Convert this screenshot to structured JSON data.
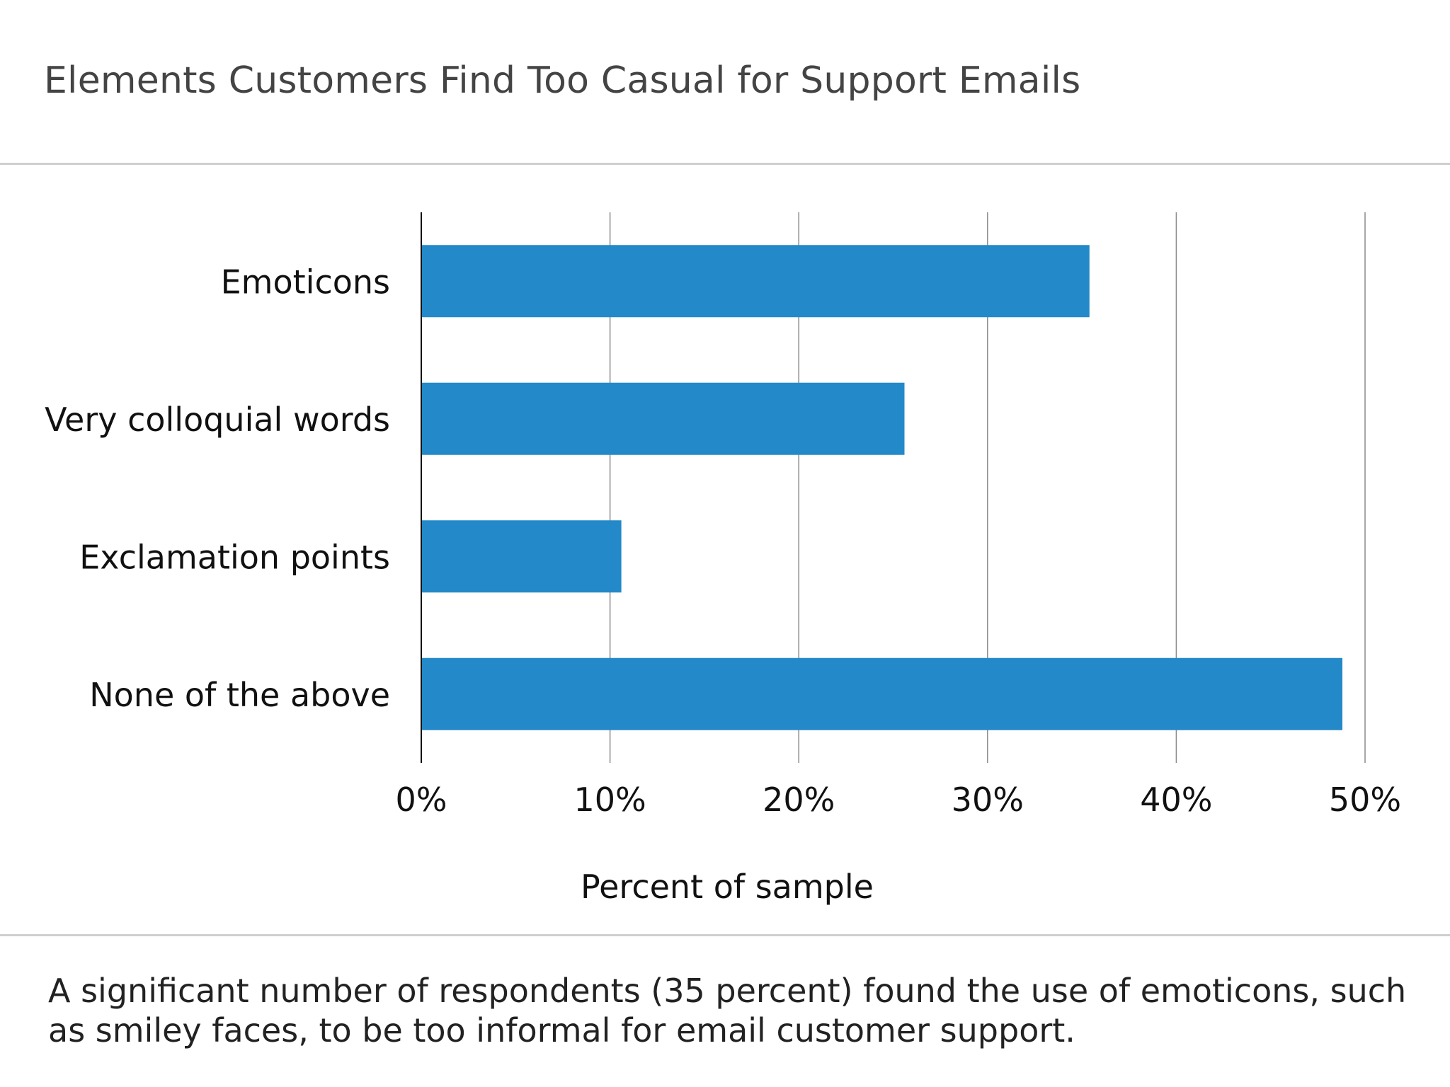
{
  "title": "Elements Customers Find Too Casual for Support Emails",
  "caption": "A significant number of respondents (35 percent) found the use of emoticons, such as smiley faces, to be too informal for email customer support.",
  "colors": {
    "bar": "#2389c8",
    "grid": "#8c8c8c",
    "axis": "#111111"
  },
  "chart_data": {
    "type": "bar",
    "orientation": "horizontal",
    "categories": [
      "Emoticons",
      "Very colloquial words",
      "Exclamation points",
      "None of the above"
    ],
    "values": [
      35.4,
      25.6,
      10.6,
      48.8
    ],
    "xlabel": "Percent of sample",
    "ylabel": "",
    "xlim": [
      0,
      50
    ],
    "ticks": [
      0,
      10,
      20,
      30,
      40,
      50
    ],
    "tick_labels": [
      "0%",
      "10%",
      "20%",
      "30%",
      "40%",
      "50%"
    ],
    "grid": true,
    "legend": "none"
  }
}
